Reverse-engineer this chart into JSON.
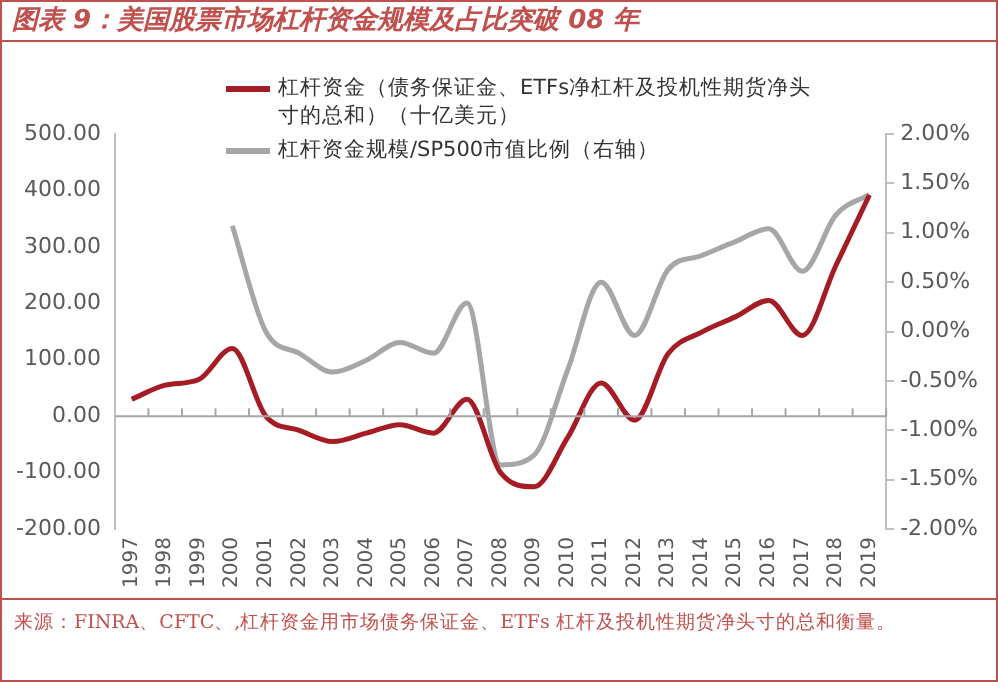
{
  "chart_data": {
    "type": "line",
    "title": "图表 9：美国股票市场杠杆资金规模及占比突破 08 年",
    "categories": [
      "1997",
      "1998",
      "1999",
      "2000",
      "2001",
      "2002",
      "2003",
      "2004",
      "2005",
      "2006",
      "2007",
      "2008",
      "2009",
      "2010",
      "2011",
      "2012",
      "2013",
      "2014",
      "2015",
      "2016",
      "2017",
      "2018",
      "2019"
    ],
    "series": [
      {
        "name": "杠杆资金（债务保证金、ETFs净杠杆及投机性期货净头寸的总和）（十亿美元）",
        "color": "#a51c24",
        "values": [
          30,
          55,
          65,
          120,
          0,
          -25,
          -45,
          -30,
          -15,
          -30,
          30,
          -100,
          -125,
          -38,
          59,
          -7,
          111,
          149,
          176,
          205,
          143,
          267,
          392
        ]
      },
      {
        "name": "杠杆资金规模/SP500市值比例（右轴）",
        "color": "#a6a6a6",
        "axis": "y2",
        "values": [
          null,
          null,
          null,
          1.07,
          0.0,
          -0.22,
          -0.41,
          -0.29,
          -0.11,
          -0.22,
          0.29,
          -1.35,
          -1.25,
          -0.39,
          0.5,
          -0.04,
          0.63,
          0.77,
          0.91,
          1.04,
          0.61,
          1.18,
          1.39
        ]
      }
    ],
    "ylim": [
      -200,
      500
    ],
    "yticks": [
      {
        "value": -200,
        "label": "-200.00"
      },
      {
        "value": -100,
        "label": "-100.00"
      },
      {
        "value": 0,
        "label": "0.00"
      },
      {
        "value": 100,
        "label": "100.00"
      },
      {
        "value": 200,
        "label": "200.00"
      },
      {
        "value": 300,
        "label": "300.00"
      },
      {
        "value": 400,
        "label": "400.00"
      },
      {
        "value": 500,
        "label": "500.00"
      }
    ],
    "y2lim": [
      -2,
      2
    ],
    "y2ticks": [
      {
        "value": -2,
        "label": "-2.00%"
      },
      {
        "value": -1.5,
        "label": "-1.50%"
      },
      {
        "value": -1,
        "label": "-1.00%"
      },
      {
        "value": -0.5,
        "label": "-0.50%"
      },
      {
        "value": 0,
        "label": "0.00%"
      },
      {
        "value": 0.5,
        "label": "0.50%"
      },
      {
        "value": 1,
        "label": "1.00%"
      },
      {
        "value": 1.5,
        "label": "1.50%"
      },
      {
        "value": 2,
        "label": "2.00%"
      }
    ],
    "ref_lines": [
      {
        "axis": "y",
        "value": 0,
        "color": "#a6a6a6"
      }
    ],
    "legend": "top",
    "grid": false,
    "marker": "none",
    "annotations": [
      "来源：FINRA、CFTC、,杠杆资金用市场债务保证金、ETFs 杠杆及投机性期货净头寸的总和衡量。"
    ]
  }
}
